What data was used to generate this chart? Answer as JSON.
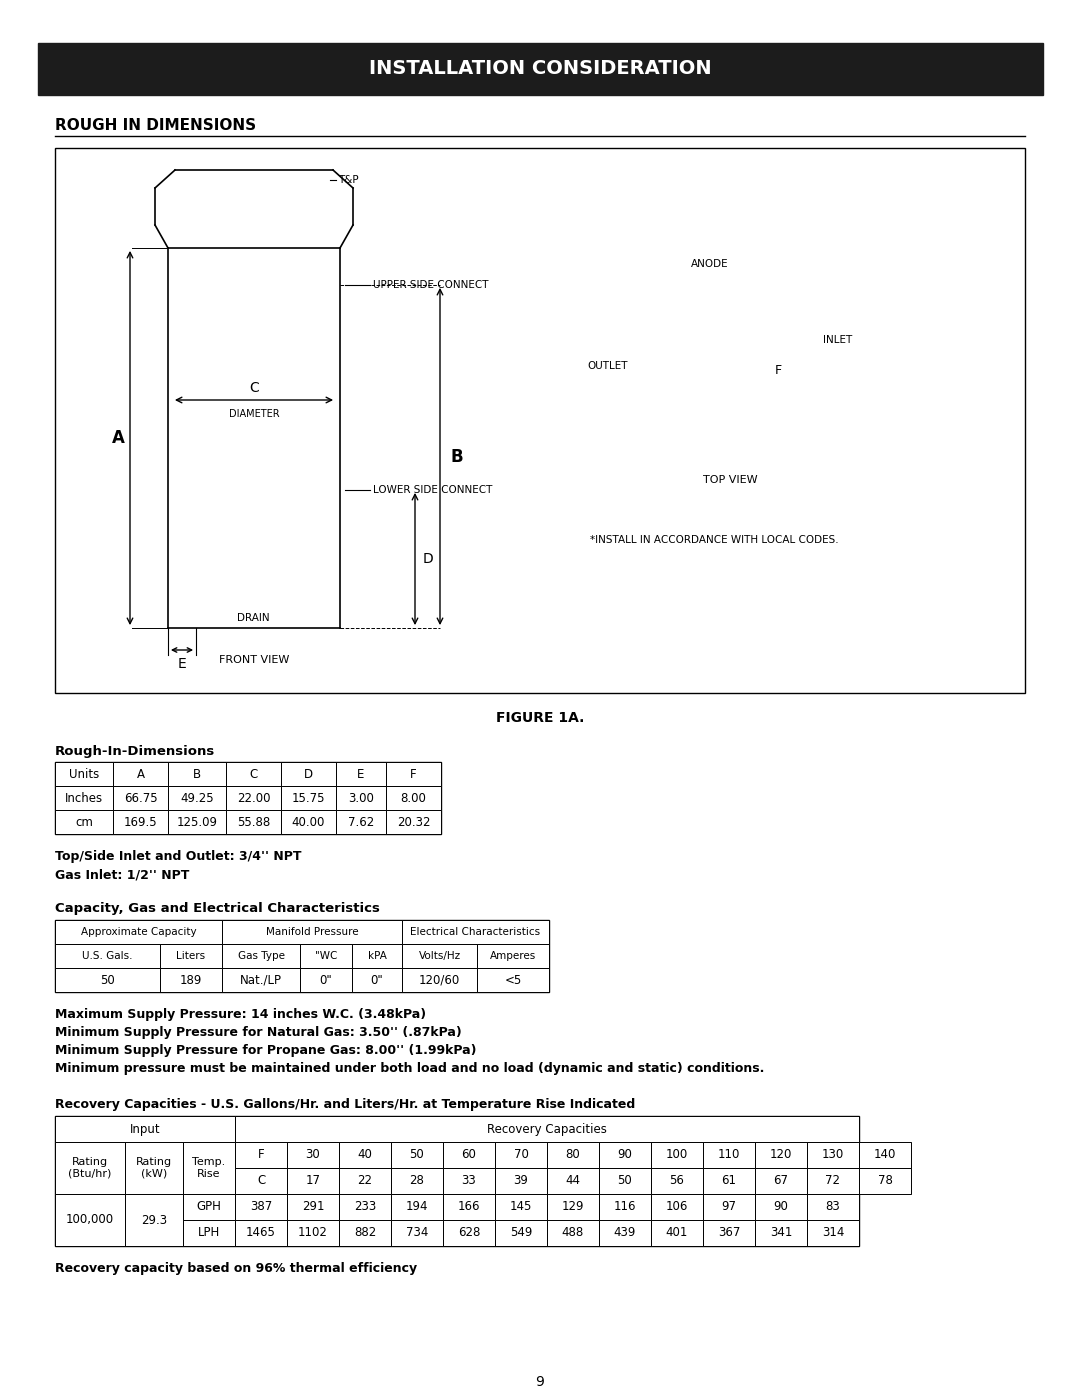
{
  "title": "INSTALLATION CONSIDERATION",
  "section_title": "ROUGH IN DIMENSIONS",
  "figure_label": "FIGURE 1A.",
  "rough_in_table": {
    "title": "Rough-In-Dimensions",
    "headers": [
      "Units",
      "A",
      "B",
      "C",
      "D",
      "E",
      "F"
    ],
    "rows": [
      [
        "Inches",
        "66.75",
        "49.25",
        "22.00",
        "15.75",
        "3.00",
        "8.00"
      ],
      [
        "cm",
        "169.5",
        "125.09",
        "55.88",
        "40.00",
        "7.62",
        "20.32"
      ]
    ]
  },
  "npt_text": [
    "Top/Side Inlet and Outlet: 3/4'' NPT",
    "Gas Inlet: 1/2'' NPT"
  ],
  "capacity_table": {
    "title": "Capacity, Gas and Electrical Characteristics",
    "header_row2": [
      "U.S. Gals.",
      "Liters",
      "Gas Type",
      "\"WC",
      "kPA",
      "Volts/Hz",
      "Amperes"
    ],
    "data_row": [
      "50",
      "189",
      "Nat./LP",
      "0\"",
      "0\"",
      "120/60",
      "<5"
    ]
  },
  "pressure_notes": [
    "Maximum Supply Pressure: 14 inches W.C. (3.48kPa)",
    "Minimum Supply Pressure for Natural Gas: 3.50'' (.87kPa)",
    "Minimum Supply Pressure for Propane Gas: 8.00'' (1.99kPa)",
    "Minimum pressure must be maintained under both load and no load (dynamic and static) conditions."
  ],
  "recovery_table": {
    "title": "Recovery Capacities - U.S. Gallons/Hr. and Liters/Hr. at Temperature Rise Indicated",
    "temp_F": [
      "F",
      "30",
      "40",
      "50",
      "60",
      "70",
      "80",
      "90",
      "100",
      "110",
      "120",
      "130",
      "140"
    ],
    "temp_C": [
      "C",
      "17",
      "22",
      "28",
      "33",
      "39",
      "44",
      "50",
      "56",
      "61",
      "67",
      "72",
      "78"
    ],
    "gph": [
      "387",
      "291",
      "233",
      "194",
      "166",
      "145",
      "129",
      "116",
      "106",
      "97",
      "90",
      "83"
    ],
    "lph": [
      "1465",
      "1102",
      "882",
      "734",
      "628",
      "549",
      "488",
      "439",
      "401",
      "367",
      "341",
      "314"
    ],
    "rating_btu": "100,000",
    "rating_kw": "29.3"
  },
  "recovery_note": "Recovery capacity based on 96% thermal efficiency",
  "page_number": "9"
}
